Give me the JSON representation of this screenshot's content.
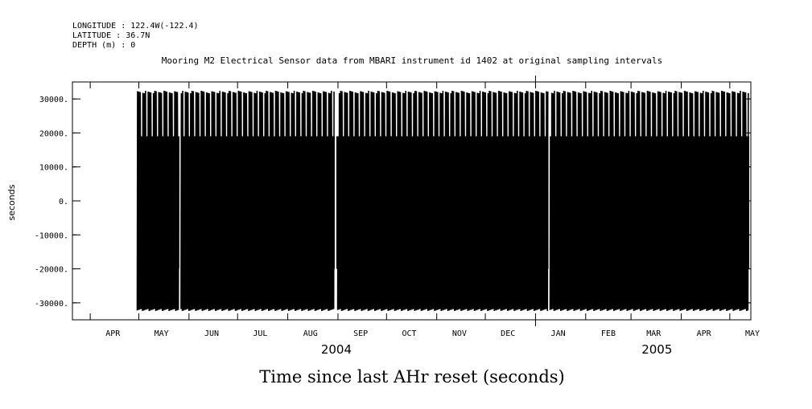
{
  "header": {
    "longitude": "LONGITUDE : 122.4W(-122.4)",
    "latitude": "LATITUDE : 36.7N",
    "depth": "DEPTH (m) : 0"
  },
  "chart_data": {
    "type": "line",
    "title": "Mooring M2 Electrical Sensor data from MBARI instrument id 1402 at original sampling intervals",
    "xlabel": "Time since last AHr reset (seconds)",
    "ylabel": "seconds",
    "x_axis": {
      "type": "date",
      "range": [
        "2004-03-21",
        "2005-05-14"
      ],
      "month_labels": [
        {
          "label": "APR",
          "date": "2004-04-15"
        },
        {
          "label": "MAY",
          "date": "2004-05-15"
        },
        {
          "label": "JUN",
          "date": "2004-06-15"
        },
        {
          "label": "JUL",
          "date": "2004-07-15"
        },
        {
          "label": "AUG",
          "date": "2004-08-15"
        },
        {
          "label": "SEP",
          "date": "2004-09-15"
        },
        {
          "label": "OCT",
          "date": "2004-10-15"
        },
        {
          "label": "NOV",
          "date": "2004-11-15"
        },
        {
          "label": "DEC",
          "date": "2004-12-15"
        },
        {
          "label": "JAN",
          "date": "2005-01-15"
        },
        {
          "label": "FEB",
          "date": "2005-02-15"
        },
        {
          "label": "MAR",
          "date": "2005-03-15"
        },
        {
          "label": "APR",
          "date": "2005-04-15"
        },
        {
          "label": "MAY",
          "date": "2005-05-15"
        }
      ],
      "year_labels": [
        {
          "label": "2004",
          "date": "2004-08-31"
        },
        {
          "label": "2005",
          "date": "2005-03-17"
        }
      ]
    },
    "y_axis": {
      "range": [
        -35000,
        35000
      ],
      "ticks": [
        30000,
        20000,
        10000,
        0,
        -10000,
        -20000,
        -30000
      ],
      "tick_labels": [
        "30000.",
        "20000.",
        "10000.",
        "0.",
        "-10000.",
        "-20000.",
        "-30000."
      ]
    },
    "series": [
      {
        "data_start": "2004-04-30",
        "data_end": "2005-05-13",
        "max_value": 32400,
        "min_value": -32400,
        "typical_inner_max": 19000,
        "typical_inner_min": -20000,
        "gaps": [
          {
            "start": "2004-05-26",
            "end": "2004-05-27"
          },
          {
            "start": "2004-08-30",
            "end": "2004-08-31"
          },
          {
            "start": "2005-01-09",
            "end": "2005-01-10"
          }
        ]
      }
    ],
    "grid": false,
    "color": "#000000"
  }
}
